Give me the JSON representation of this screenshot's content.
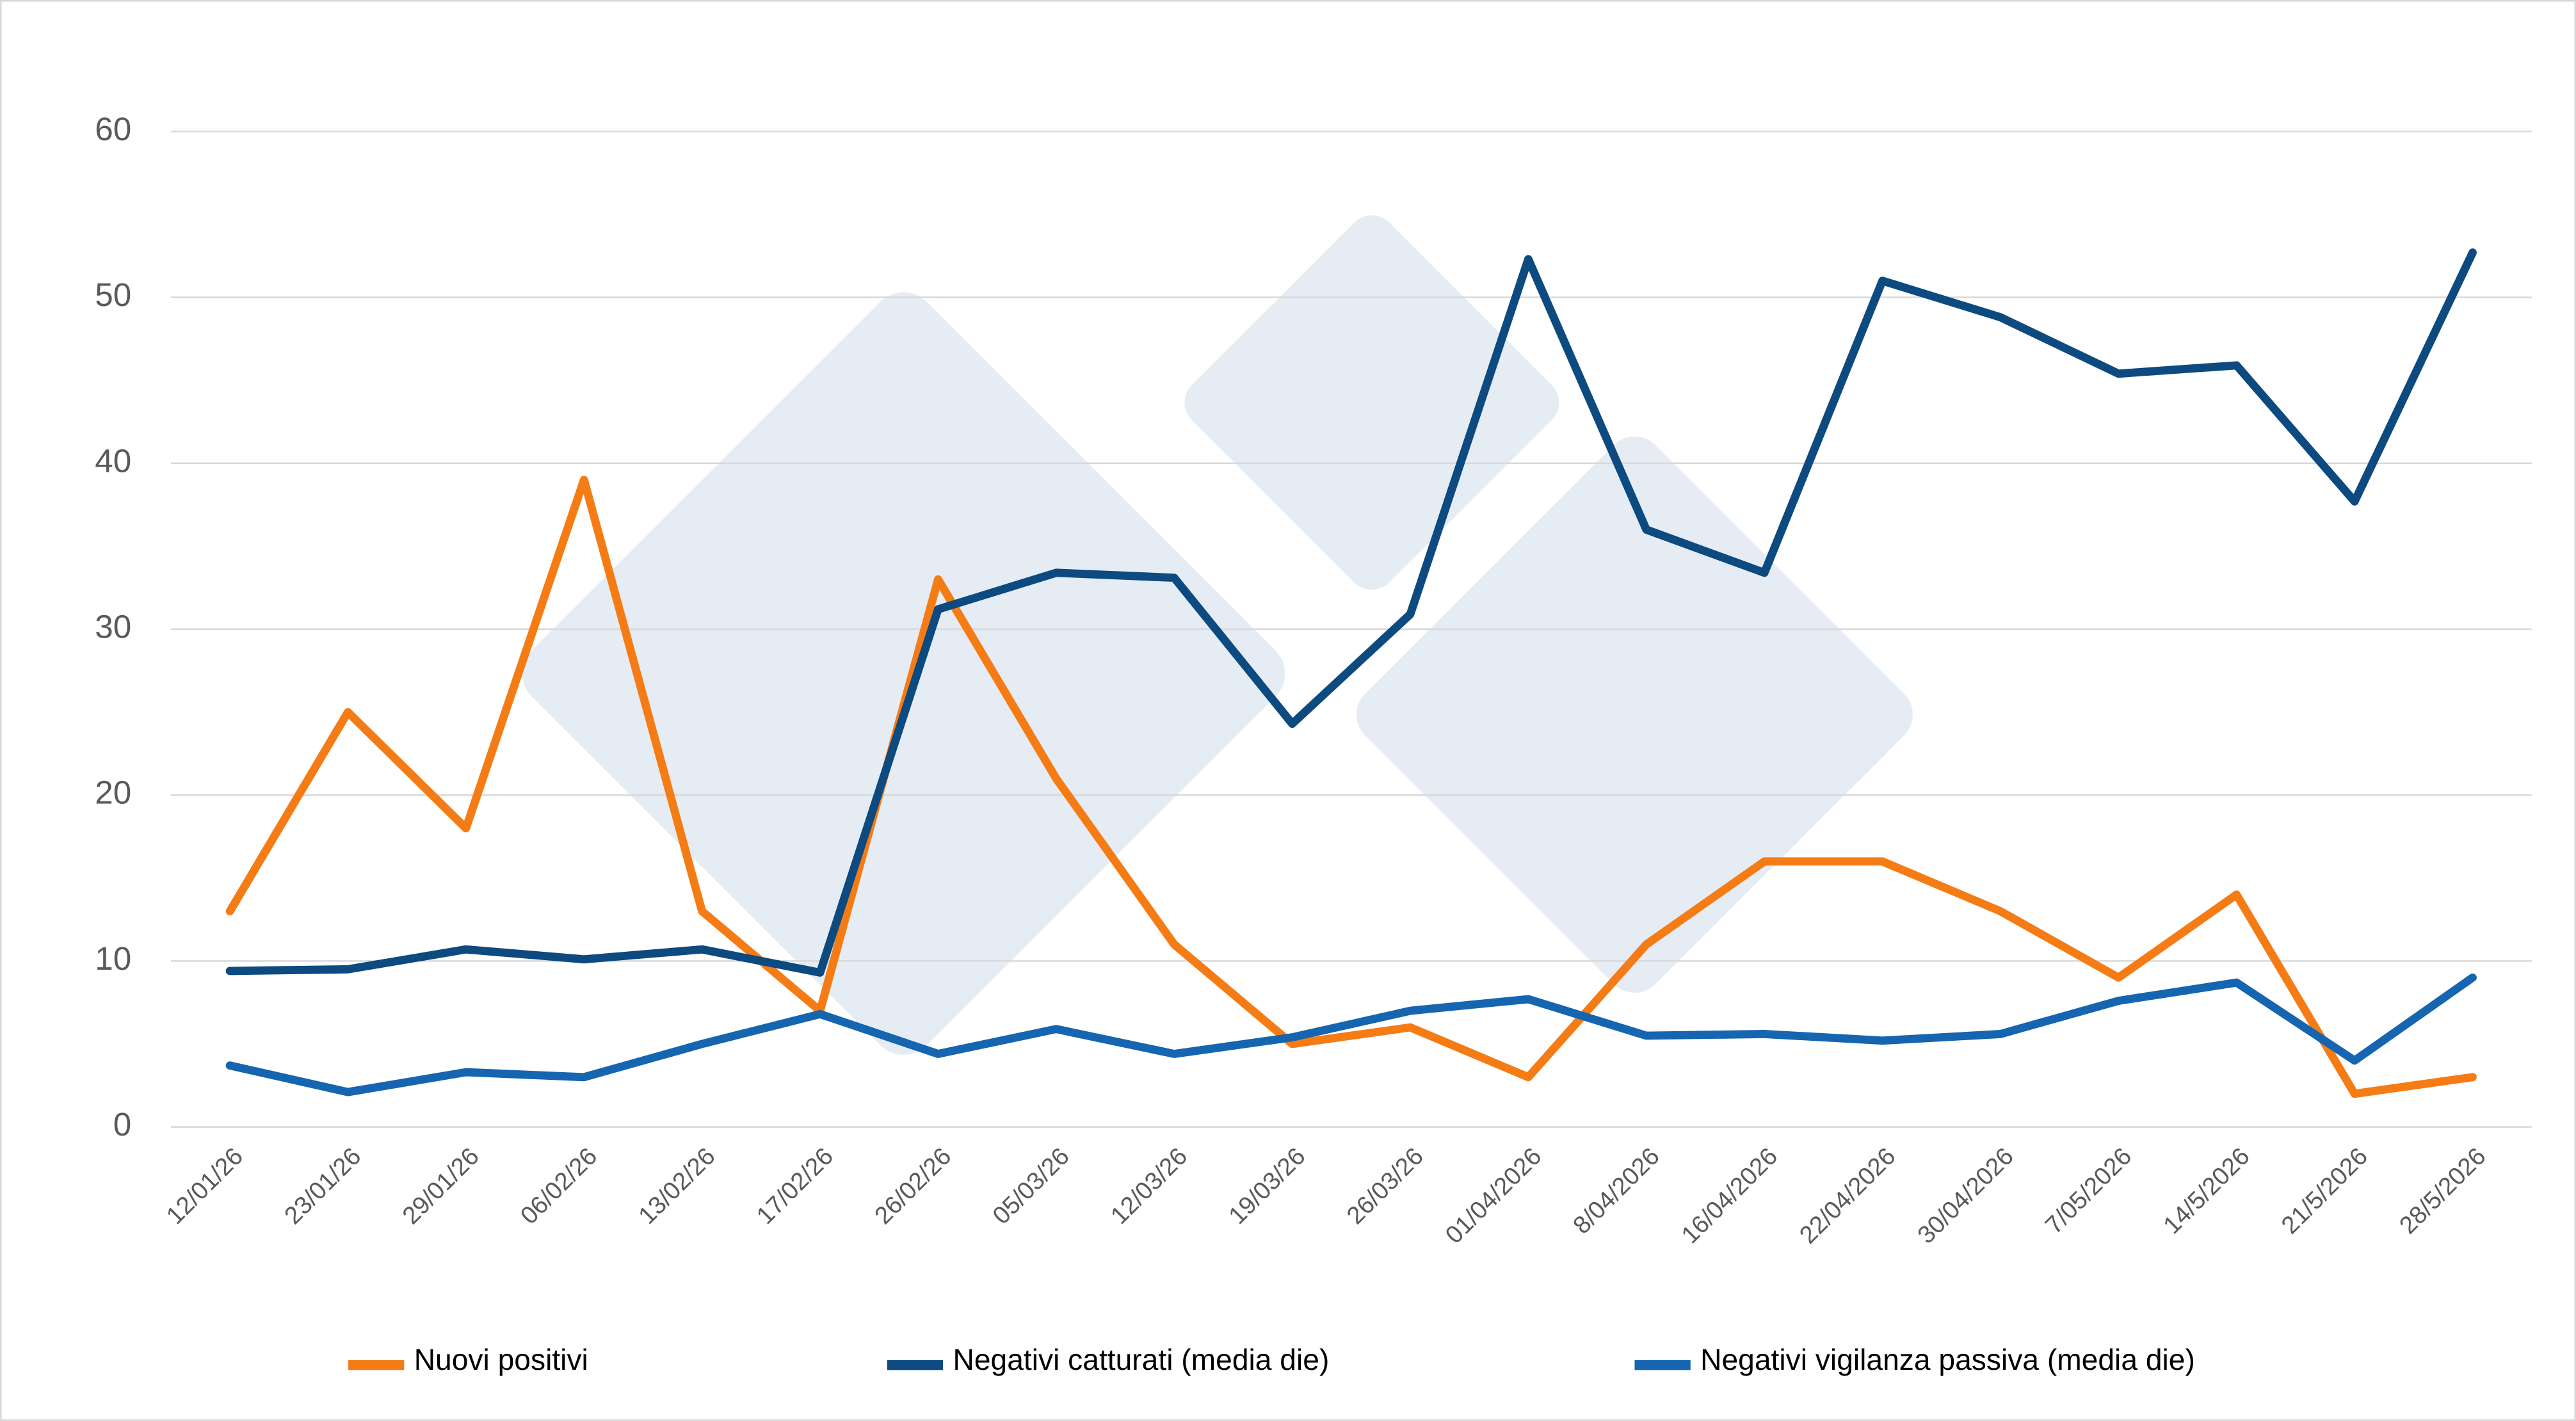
{
  "chart_data": {
    "type": "line",
    "categories": [
      "12/01/26",
      "23/01/26",
      "29/01/26",
      "06/02/26",
      "13/02/26",
      "17/02/26",
      "26/02/26",
      "05/03/26",
      "12/03/26",
      "19/03/26",
      "26/03/26",
      "01/04/2026",
      "8/04/2026",
      "16/04/2026",
      "22/04/2026",
      "30/04/2026",
      "7/05/2026",
      "14/5/2026",
      "21/5/2026",
      "28/5/2026"
    ],
    "series": [
      {
        "name": "Nuovi positivi",
        "color": "#f57c15",
        "values": [
          13,
          25,
          18,
          39,
          13,
          7,
          33,
          21,
          11,
          5,
          6,
          3,
          11,
          16,
          16,
          13,
          9,
          14,
          2,
          3
        ]
      },
      {
        "name": "Negativi catturati (media die)",
        "color": "#0c4a80",
        "values": [
          9.4,
          9.5,
          10.7,
          10.1,
          10.7,
          9.3,
          31.2,
          33.4,
          33.1,
          24.3,
          30.9,
          52.3,
          36,
          33.4,
          51,
          48.8,
          45.4,
          45.9,
          37.7,
          52.7
        ]
      },
      {
        "name": "Negativi vigilanza passiva (media die)",
        "color": "#1565b0",
        "values": [
          3.7,
          2.1,
          3.3,
          3.0,
          5.0,
          6.8,
          4.4,
          5.9,
          4.4,
          5.4,
          7.0,
          7.7,
          5.5,
          5.6,
          5.2,
          5.6,
          7.6,
          8.7,
          4.0,
          9.0
        ]
      }
    ],
    "ylim": [
      0,
      60
    ],
    "yticks": [
      0,
      10,
      20,
      30,
      40,
      50,
      60
    ],
    "grid": true,
    "legend": "bottom"
  }
}
